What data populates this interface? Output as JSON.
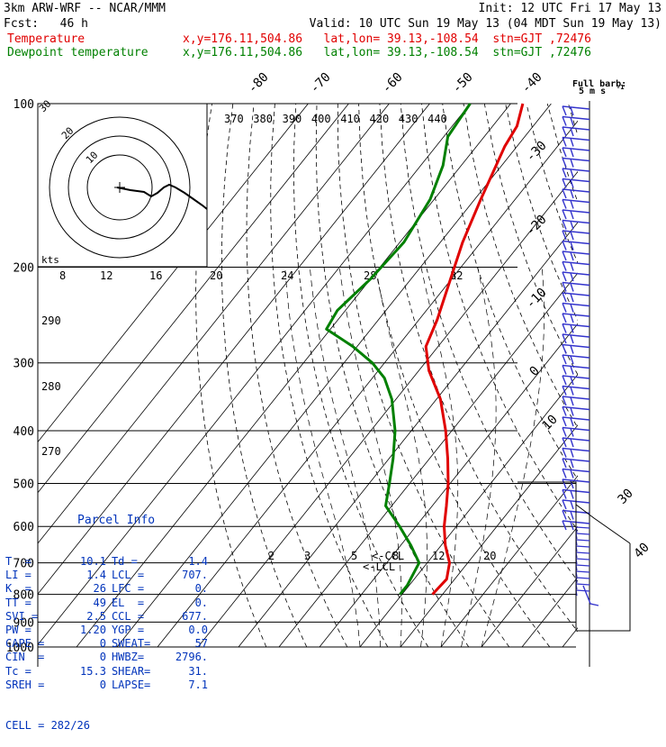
{
  "header": {
    "model": "3km ARW-WRF -- NCAR/MMM",
    "init": "Init: 12 UTC Fri 17 May 13",
    "fcst": "Fcst:   46 h",
    "valid": "Valid: 10 UTC Sun 19 May 13 (04 MDT Sun 19 May 13)",
    "temp_label": "Temperature",
    "temp_info": "x,y=176.11,504.86   lat,lon= 39.13,-108.54  stn=GJT ,72476",
    "dew_label": "Dewpoint temperature",
    "dew_info": "x,y=176.11,504.86   lat,lon= 39.13,-108.54  stn=GJT ,72476"
  },
  "colors": {
    "temperature": "#e00000",
    "dewpoint": "#008000",
    "parcel": "#0033bb",
    "barb": "#3333cc"
  },
  "icons": {
    "wind_barbs": "wind-barb-icon",
    "hodograph": "hodograph-icon"
  },
  "chart_data": {
    "type": "skew-t",
    "pressure_levels": [
      "100",
      "200",
      "300",
      "400",
      "500",
      "600",
      "700",
      "800",
      "900",
      "1000"
    ],
    "pressure_range_hpa": [
      1000,
      100
    ],
    "top_skewed_isotherm_labels": [
      "-80",
      "-70",
      "-60",
      "-50",
      "-40"
    ],
    "right_skewed_isotherm_labels": [
      "-30",
      "-20",
      "-10",
      "0",
      "10"
    ],
    "right_lower_isotherm_labels": [
      "30",
      "40"
    ],
    "theta_labels": [
      "370",
      "380",
      "390",
      "400",
      "410",
      "420",
      "430",
      "440"
    ],
    "inset_theta_labels": [
      "290",
      "280",
      "270"
    ],
    "mixing_ratio_labels_upper": [
      "8",
      "12",
      "16",
      "20",
      "24",
      "28",
      "32"
    ],
    "mixing_ratio_labels_lower": [
      "2",
      "3",
      "5",
      "8",
      "12",
      "20"
    ],
    "markers": {
      "ccl": "<-CCL",
      "lcl": "<-LCL"
    },
    "barb_legend": {
      "line1": "Full barb:",
      "line2": "5 m s",
      "exp": "-1"
    },
    "hodograph": {
      "units": "kts",
      "ring_labels": [
        "10",
        "20",
        "30"
      ]
    },
    "temperature_profile": [
      {
        "p": 800,
        "t": 7.5
      },
      {
        "p": 750,
        "t": 8
      },
      {
        "p": 700,
        "t": 5.5
      },
      {
        "p": 650,
        "t": 1
      },
      {
        "p": 600,
        "t": -3
      },
      {
        "p": 550,
        "t": -6.5
      },
      {
        "p": 500,
        "t": -10.5
      },
      {
        "p": 450,
        "t": -15.5
      },
      {
        "p": 400,
        "t": -21.5
      },
      {
        "p": 350,
        "t": -29
      },
      {
        "p": 310,
        "t": -37.5
      },
      {
        "p": 280,
        "t": -43
      },
      {
        "p": 250,
        "t": -45.5
      },
      {
        "p": 220,
        "t": -49
      },
      {
        "p": 180,
        "t": -54.5
      },
      {
        "p": 150,
        "t": -58.5
      },
      {
        "p": 120,
        "t": -63
      },
      {
        "p": 110,
        "t": -64
      },
      {
        "p": 100,
        "t": -67
      }
    ],
    "dewpoint_profile": [
      {
        "p": 800,
        "t": -0.5
      },
      {
        "p": 770,
        "t": -0.5
      },
      {
        "p": 700,
        "t": -2
      },
      {
        "p": 650,
        "t": -7.5
      },
      {
        "p": 600,
        "t": -14
      },
      {
        "p": 550,
        "t": -21.5
      },
      {
        "p": 500,
        "t": -25
      },
      {
        "p": 450,
        "t": -29
      },
      {
        "p": 400,
        "t": -34
      },
      {
        "p": 350,
        "t": -41
      },
      {
        "p": 320,
        "t": -47
      },
      {
        "p": 300,
        "t": -53
      },
      {
        "p": 280,
        "t": -61
      },
      {
        "p": 260,
        "t": -71
      },
      {
        "p": 240,
        "t": -72
      },
      {
        "p": 210,
        "t": -70
      },
      {
        "p": 180,
        "t": -69
      },
      {
        "p": 150,
        "t": -71
      },
      {
        "p": 130,
        "t": -74.5
      },
      {
        "p": 115,
        "t": -79
      },
      {
        "p": 100,
        "t": -80
      }
    ]
  },
  "parcel": {
    "title": "Parcel Info",
    "rows": [
      [
        "T  =",
        "10.1",
        "Td =",
        "1.4"
      ],
      [
        "LI =",
        "1.4",
        "LCL =",
        "707."
      ],
      [
        "K  =",
        "26",
        "LFC =",
        "0."
      ],
      [
        "TT =",
        "49",
        "EL  =",
        "0."
      ],
      [
        "SVI =",
        "2.5",
        "CCL =",
        "677."
      ],
      [
        "PW =",
        "1.20",
        "YGP =",
        "0.0"
      ],
      [
        "CAPE =",
        "0",
        "SWEAT=",
        "57"
      ],
      [
        "CIN  =",
        "0",
        "HWBZ=",
        "2796."
      ],
      [
        "Tc =",
        "15.3",
        "SHEAR=",
        "31."
      ],
      [
        "SREH =",
        "0",
        "LAPSE=",
        "7.1"
      ]
    ],
    "cell": "CELL = 282/26"
  }
}
